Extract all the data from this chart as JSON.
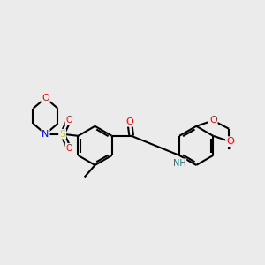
{
  "background_color": "#ebebeb",
  "bond_color": "#000000",
  "atom_colors": {
    "O": "#ff0000",
    "N": "#0000ff",
    "S": "#cccc00",
    "H": "#008080",
    "C": "#000000"
  },
  "bond_width": 1.5,
  "figsize": [
    3.0,
    3.0
  ],
  "dpi": 100
}
